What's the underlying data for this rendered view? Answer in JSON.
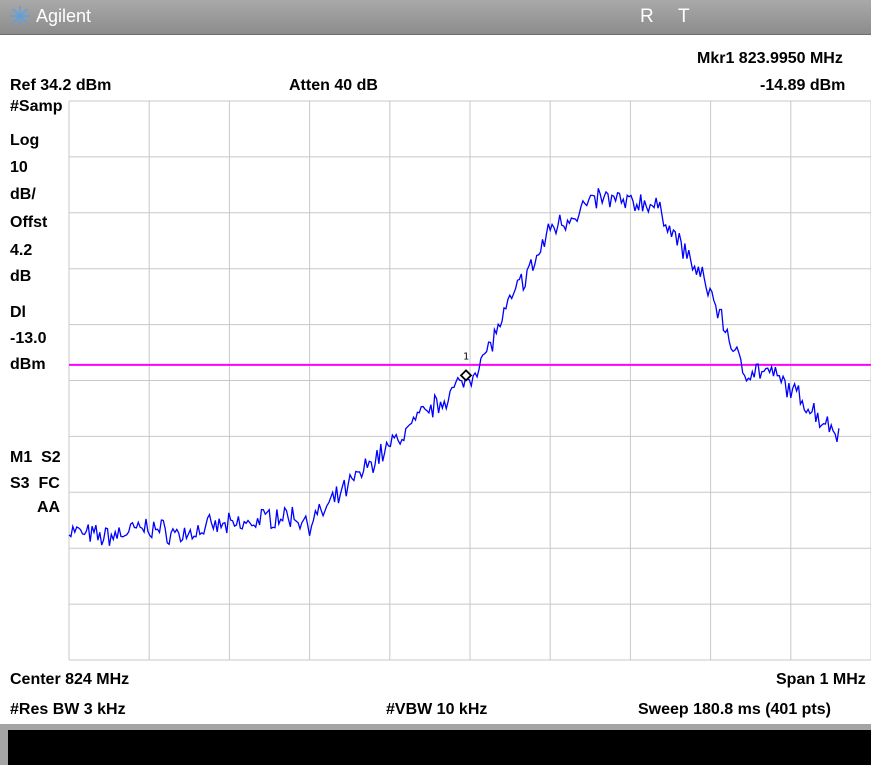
{
  "app": {
    "name": "Agilent"
  },
  "status": {
    "r": "R",
    "t": "T"
  },
  "marker": {
    "label": "Mkr1 823.9950 MHz",
    "level": "-14.89 dBm",
    "id": "1"
  },
  "header": {
    "ref_level": "Ref 34.2 dBm",
    "atten": "Atten 40 dB"
  },
  "left_panel": {
    "detector": "#Samp",
    "scale_type": "Log",
    "scale_value": "10",
    "scale_unit": "dB/",
    "offset_label": "Offst",
    "offset_value": "4.2",
    "offset_unit": "dB",
    "dl_label": "Dl",
    "dl_value": "-13.0",
    "dl_unit": "dBm",
    "trace_line1": "M1  S2",
    "trace_line2": "S3  FC",
    "trace_line3": "AA"
  },
  "footer": {
    "center": "Center 824 MHz",
    "span": "Span 1 MHz",
    "res_bw": "#Res BW 3 kHz",
    "vbw": "#VBW 10 kHz",
    "sweep": "Sweep 180.8 ms (401 pts)"
  },
  "colors": {
    "trace": "#0000ff",
    "display_line": "#ff00ff",
    "grid": "#c8c8c8"
  },
  "trace_data": {
    "center_mhz": 824,
    "span_mhz": 1,
    "ref_dbm": 34.2,
    "db_per_div": 10,
    "display_line_dbm": -13.0,
    "marker_freq_mhz": 823.995,
    "marker_level_dbm": -14.89,
    "points": [
      [
        823.5,
        -42.5
      ],
      [
        823.52,
        -43.3
      ],
      [
        823.54,
        -43.8
      ],
      [
        823.56,
        -43.4
      ],
      [
        823.58,
        -42.6
      ],
      [
        823.6,
        -42.0
      ],
      [
        823.62,
        -42.8
      ],
      [
        823.64,
        -43.4
      ],
      [
        823.66,
        -42.7
      ],
      [
        823.68,
        -41.9
      ],
      [
        823.7,
        -41.8
      ],
      [
        823.72,
        -41.6
      ],
      [
        823.74,
        -40.6
      ],
      [
        823.76,
        -39.9
      ],
      [
        823.78,
        -40.2
      ],
      [
        823.8,
        -41.2
      ],
      [
        823.82,
        -39.0
      ],
      [
        823.84,
        -36.0
      ],
      [
        823.86,
        -33.0
      ],
      [
        823.88,
        -30.0
      ],
      [
        823.9,
        -27.5
      ],
      [
        823.92,
        -25.0
      ],
      [
        823.94,
        -22.0
      ],
      [
        823.96,
        -20.0
      ],
      [
        823.98,
        -17.5
      ],
      [
        824.0,
        -15.0
      ],
      [
        824.02,
        -11.0
      ],
      [
        824.04,
        -5.0
      ],
      [
        824.06,
        1.0
      ],
      [
        824.08,
        5.0
      ],
      [
        824.1,
        11.5
      ],
      [
        824.12,
        13.0
      ],
      [
        824.14,
        15.0
      ],
      [
        824.16,
        16.8
      ],
      [
        824.18,
        16.5
      ],
      [
        824.2,
        15.8
      ],
      [
        824.22,
        16.2
      ],
      [
        824.24,
        14.0
      ],
      [
        824.26,
        9.0
      ],
      [
        824.28,
        4.5
      ],
      [
        824.3,
        0.0
      ],
      [
        824.32,
        -7.0
      ],
      [
        824.34,
        -14.0
      ],
      [
        824.36,
        -14.0
      ],
      [
        824.38,
        -15.0
      ],
      [
        824.4,
        -17.5
      ],
      [
        824.42,
        -20.0
      ],
      [
        824.44,
        -23.0
      ],
      [
        824.46,
        -25.0
      ]
    ]
  }
}
